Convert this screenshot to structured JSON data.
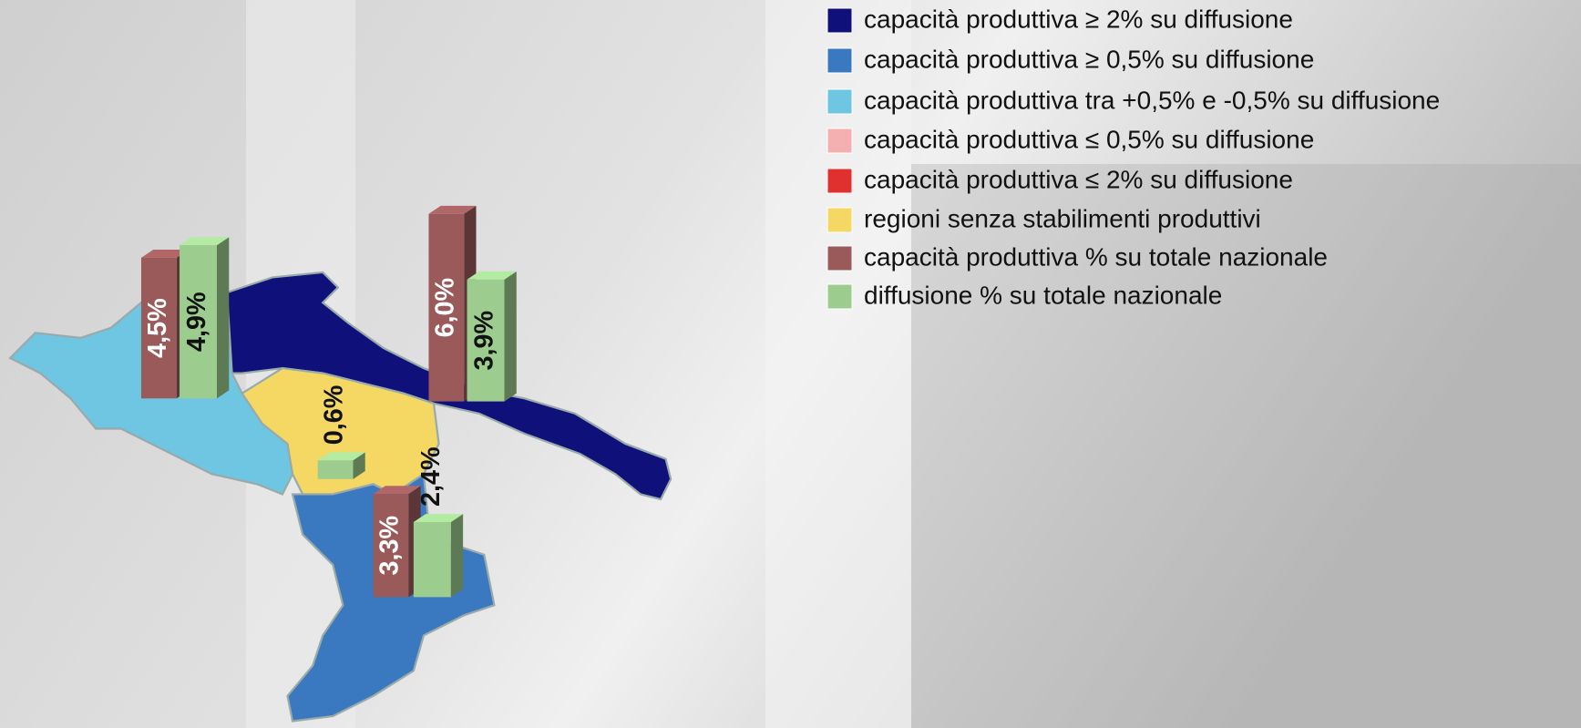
{
  "legend": [
    {
      "color": "#10107a",
      "label": "capacità produttiva ≥ 2% su diffusione"
    },
    {
      "color": "#3a78c0",
      "label": "capacità produttiva ≥ 0,5% su diffusione"
    },
    {
      "color": "#6ec6e2",
      "label": "capacità produttiva tra +0,5% e -0,5% su diffusione"
    },
    {
      "color": "#f4b0b0",
      "label": "capacità produttiva ≤ 0,5% su diffusione"
    },
    {
      "color": "#e03030",
      "label": "capacità produttiva ≤ 2% su diffusione"
    },
    {
      "color": "#f5d864",
      "label": "regioni senza stabilimenti produttivi"
    },
    {
      "color": "#9a5a5a",
      "label": "capacità produttiva % su totale nazionale"
    },
    {
      "color": "#9ccc8e",
      "label": "diffusione % su totale nazionale"
    }
  ],
  "regions": [
    {
      "fill": "#6ec6e2",
      "bars": [
        {
          "value": 4.5,
          "label": "4,5%",
          "color": "#9a5a5a"
        },
        {
          "value": 4.9,
          "label": "4,9%",
          "color": "#9ccc8e"
        }
      ]
    },
    {
      "fill": "#10107a",
      "bars": [
        {
          "value": 6.0,
          "label": "6,0%",
          "color": "#9a5a5a"
        },
        {
          "value": 3.9,
          "label": "3,9%",
          "color": "#9ccc8e"
        }
      ]
    },
    {
      "fill": "#f5d864",
      "bars": [
        {
          "value": 0.6,
          "label": "0,6%",
          "color": "#9ccc8e"
        }
      ]
    },
    {
      "fill": "#3a78c0",
      "bars": [
        {
          "value": 3.3,
          "label": "3,3%",
          "color": "#9a5a5a"
        },
        {
          "value": 2.4,
          "label": "2,4%",
          "color": "#9ccc8e"
        }
      ]
    }
  ]
}
